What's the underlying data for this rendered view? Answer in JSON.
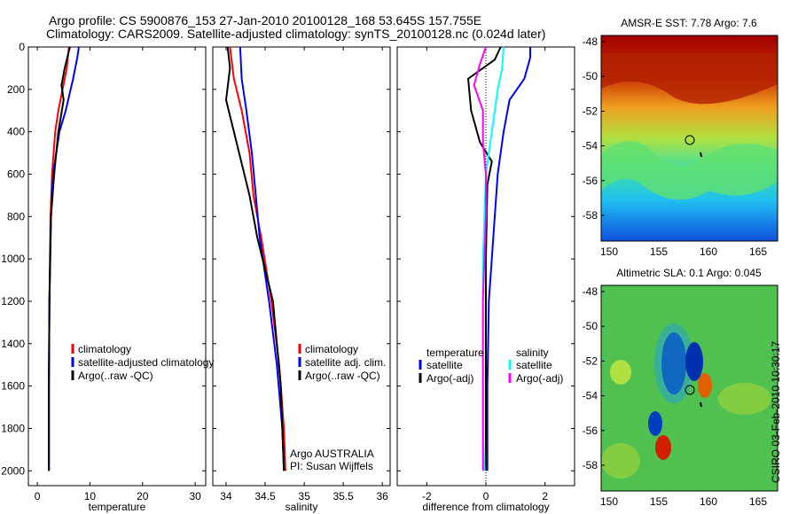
{
  "title_line1": "Argo profile: CS 5900876_153 27-Jan-2010 20100128_168 53.645S 157.755E",
  "title_line2": "Climatology: CARS2009. Satellite-adjusted climatology: synTS_20100128.nc (0.024d later)",
  "side_label": "CSIRO 03-Feb-2010 10:30:17",
  "colors": {
    "climatology": "#ff0000",
    "satellite": "#0000ff",
    "argo": "#000000",
    "sat_sal": "#00ffff",
    "argo_sal": "#ff00ff"
  },
  "chart_data": [
    {
      "type": "line",
      "xlabel": "temperature",
      "ylabel": "",
      "xticks": [
        "0",
        "10",
        "20",
        "30"
      ],
      "xtick_values": [
        0,
        10,
        20,
        30
      ],
      "yticks": [
        "0",
        "200",
        "400",
        "600",
        "800",
        "1000",
        "1200",
        "1400",
        "1600",
        "1800",
        "2000"
      ],
      "ylim": [
        2070,
        0
      ],
      "xlim": [
        -1.7,
        32
      ],
      "legend": [
        "climatology",
        "satellite-adjusted climatology",
        "Argo(..raw -QC)"
      ],
      "series": [
        {
          "name": "climatology",
          "color": "#ff0000",
          "x": [
            6.0,
            5.6,
            4.8,
            4.0,
            3.4,
            2.8,
            2.5,
            2.3,
            2.2,
            2.2
          ],
          "y": [
            0,
            100,
            200,
            300,
            400,
            600,
            800,
            1200,
            1600,
            2000
          ]
        },
        {
          "name": "satellite",
          "color": "#0000ff",
          "x": [
            7.9,
            7.6,
            6.8,
            5.4,
            4.2,
            3.0,
            2.6,
            2.3,
            2.2,
            2.2
          ],
          "y": [
            0,
            50,
            150,
            300,
            400,
            600,
            800,
            1200,
            1600,
            2000
          ]
        },
        {
          "name": "argo",
          "color": "#000000",
          "x": [
            6.2,
            5.2,
            4.6,
            5.0,
            4.0,
            3.2,
            2.6,
            2.3,
            2.2,
            2.2
          ],
          "y": [
            0,
            100,
            180,
            250,
            400,
            600,
            800,
            1200,
            1600,
            2000
          ]
        }
      ]
    },
    {
      "type": "line",
      "xlabel": "salinity",
      "xticks": [
        "34",
        "34.5",
        "35",
        "35.5",
        "36"
      ],
      "xtick_values": [
        34,
        34.5,
        35,
        35.5,
        36
      ],
      "xlim": [
        33.83,
        36.1
      ],
      "legend": [
        "climatology",
        "satellite adj. clim.",
        "Argo(..raw -QC)"
      ],
      "annotation": [
        "Argo AUSTRALIA",
        "PI: Susan Wijffels"
      ],
      "series": [
        {
          "name": "climatology",
          "color": "#ff0000",
          "x": [
            34.05,
            34.1,
            34.2,
            34.3,
            34.35,
            34.45,
            34.58,
            34.68,
            34.74,
            34.76
          ],
          "y": [
            0,
            150,
            300,
            500,
            700,
            900,
            1200,
            1500,
            1800,
            2000
          ]
        },
        {
          "name": "satellite",
          "color": "#0000ff",
          "x": [
            34.18,
            34.2,
            34.26,
            34.33,
            34.38,
            34.43,
            34.55,
            34.65,
            34.72,
            34.74
          ],
          "y": [
            0,
            150,
            300,
            500,
            700,
            900,
            1200,
            1500,
            1800,
            2000
          ]
        },
        {
          "name": "argo",
          "color": "#000000",
          "x": [
            34.02,
            34.05,
            34.0,
            34.1,
            34.2,
            34.3,
            34.4,
            34.6,
            34.7,
            34.74
          ],
          "y": [
            0,
            100,
            250,
            400,
            550,
            700,
            900,
            1200,
            1600,
            2000
          ]
        }
      ]
    },
    {
      "type": "line",
      "xlabel": "difference from climatology",
      "xticks": [
        "-2",
        "0",
        "2"
      ],
      "xtick_values": [
        -2,
        0,
        2
      ],
      "xlim": [
        -3,
        3
      ],
      "legend_groups": [
        {
          "title": "temperature",
          "items": [
            "satellite",
            "Argo(-adj)"
          ]
        },
        {
          "title": "salinity",
          "items": [
            "satellite",
            "Argo(-adj)"
          ]
        }
      ],
      "series": [
        {
          "name": "temp satellite",
          "color": "#0000ff",
          "x": [
            1.5,
            1.5,
            1.3,
            0.8,
            0.6,
            0.4,
            0.3,
            0.1,
            0.05,
            0.05
          ],
          "y": [
            0,
            50,
            150,
            250,
            400,
            600,
            800,
            1200,
            1600,
            2000
          ]
        },
        {
          "name": "temp argo",
          "color": "#000000",
          "x": [
            0.5,
            0.3,
            -0.6,
            -0.5,
            -0.2,
            0.2,
            0.05,
            0.0,
            0.0,
            0.0
          ],
          "y": [
            0,
            60,
            150,
            300,
            450,
            540,
            650,
            1000,
            1600,
            2000
          ]
        },
        {
          "name": "sal satellite",
          "color": "#00ffff",
          "x": [
            0.6,
            0.55,
            0.4,
            0.2,
            0.0,
            -0.05,
            -0.1,
            -0.1,
            -0.1,
            -0.05
          ],
          "y": [
            0,
            100,
            200,
            400,
            600,
            800,
            1000,
            1400,
            1800,
            2000
          ]
        },
        {
          "name": "sal argo",
          "color": "#ff00ff",
          "x": [
            0.0,
            -0.2,
            -0.4,
            -0.1,
            -0.1,
            0.0,
            0.0,
            -0.1,
            -0.1,
            -0.1
          ],
          "y": [
            0,
            80,
            180,
            300,
            450,
            600,
            800,
            1200,
            1600,
            2000
          ]
        }
      ]
    },
    {
      "type": "heatmap",
      "title": "AMSR-E SST: 7.78 Argo: 7.6",
      "xticks": [
        "150",
        "155",
        "160",
        "165"
      ],
      "yticks": [
        "-48",
        "-50",
        "-52",
        "-54",
        "-56",
        "-58"
      ]
    },
    {
      "type": "heatmap",
      "title": "Altimetric SLA: 0.1 Argo: 0.045",
      "xticks": [
        "150",
        "155",
        "160",
        "165"
      ],
      "yticks": [
        "-48",
        "-50",
        "-52",
        "-54",
        "-56",
        "-58"
      ]
    }
  ]
}
